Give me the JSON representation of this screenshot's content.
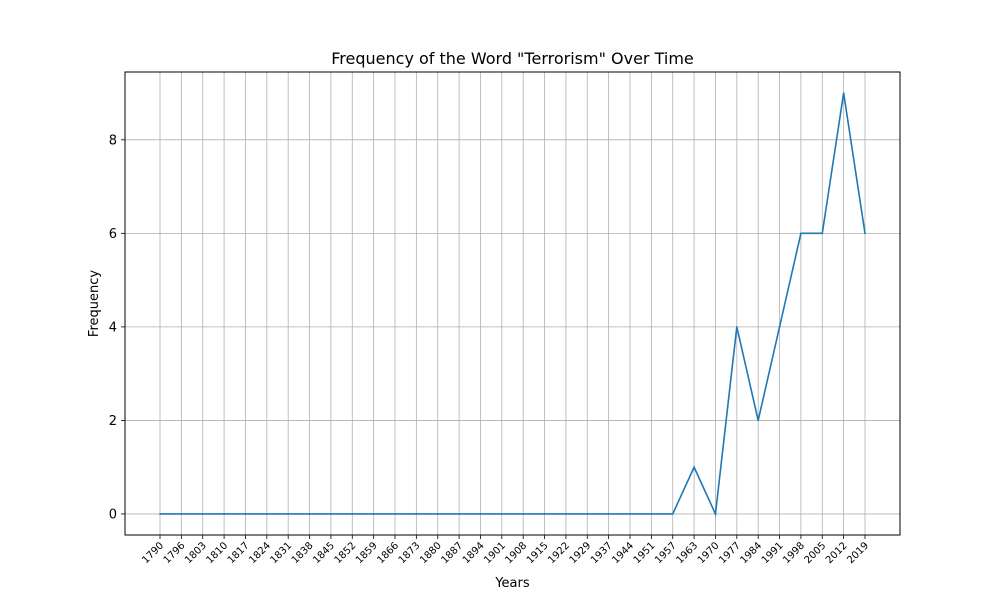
{
  "chart_data": {
    "type": "line",
    "title": "Frequency of the Word \"Terrorism\" Over Time",
    "xlabel": "Years",
    "ylabel": "Frequency",
    "categories": [
      "1790",
      "1796",
      "1803",
      "1810",
      "1817",
      "1824",
      "1831",
      "1838",
      "1845",
      "1852",
      "1859",
      "1866",
      "1873",
      "1880",
      "1887",
      "1894",
      "1901",
      "1908",
      "1915",
      "1922",
      "1929",
      "1937",
      "1944",
      "1951",
      "1957",
      "1963",
      "1970",
      "1977",
      "1984",
      "1991",
      "1998",
      "2005",
      "2012",
      "2019"
    ],
    "series": [
      {
        "values": [
          0,
          0,
          0,
          0,
          0,
          0,
          0,
          0,
          0,
          0,
          0,
          0,
          0,
          0,
          0,
          0,
          0,
          0,
          0,
          0,
          0,
          0,
          0,
          0,
          0,
          1,
          0,
          4,
          2,
          4,
          6,
          6,
          9,
          6
        ]
      }
    ],
    "yticks": [
      0,
      2,
      4,
      6,
      8
    ],
    "ylim": [
      -0.45,
      9.45
    ],
    "grid": true,
    "line_color": "#1f77b4",
    "grid_color": "#b0b0b0"
  }
}
